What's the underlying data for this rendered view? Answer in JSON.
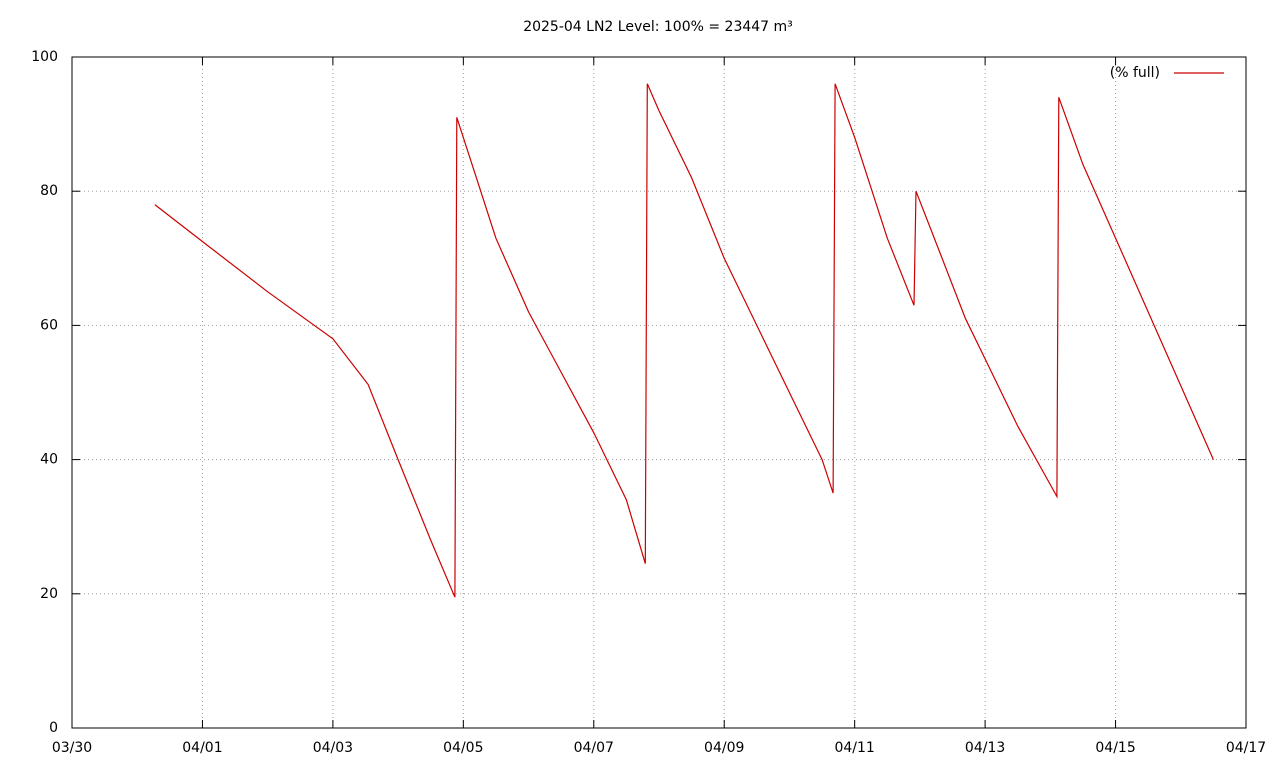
{
  "chart_data": {
    "type": "line",
    "title": "2025-04 LN2 Level: 100% = 23447 m³",
    "x": [
      1.27,
      2.0,
      3.0,
      4.0,
      4.54,
      5.0,
      5.5,
      5.87,
      5.9,
      6.2,
      6.5,
      7.0,
      7.5,
      8.0,
      8.5,
      8.79,
      8.82,
      9.0,
      9.5,
      10.0,
      10.5,
      11.0,
      11.5,
      11.67,
      11.7,
      12.0,
      12.5,
      12.91,
      12.94,
      13.3,
      13.7,
      14.0,
      14.5,
      15.1,
      15.13,
      15.5,
      16.0,
      16.5,
      17.0,
      17.5
    ],
    "series": [
      {
        "name": "(% full)",
        "color": "#cc0000",
        "values": [
          78,
          72.5,
          65,
          58,
          51.2,
          40,
          28,
          19.5,
          91,
          82,
          73,
          62,
          53,
          44,
          34,
          24.5,
          96,
          92,
          82,
          70,
          60,
          50,
          40,
          35,
          96,
          88,
          73,
          63,
          80,
          71,
          61,
          55,
          45,
          34.5,
          94,
          84,
          73,
          62,
          51,
          40
        ]
      }
    ],
    "xlim": [
      0,
      18
    ],
    "xticks": [
      {
        "value": 0,
        "label": "03/30"
      },
      {
        "value": 2,
        "label": "04/01"
      },
      {
        "value": 4,
        "label": "04/03"
      },
      {
        "value": 6,
        "label": "04/05"
      },
      {
        "value": 8,
        "label": "04/07"
      },
      {
        "value": 10,
        "label": "04/09"
      },
      {
        "value": 12,
        "label": "04/11"
      },
      {
        "value": 14,
        "label": "04/13"
      },
      {
        "value": 16,
        "label": "04/15"
      },
      {
        "value": 18,
        "label": "04/17"
      }
    ],
    "ylim": [
      0,
      100
    ],
    "yticks": [
      0,
      20,
      40,
      60,
      80,
      100
    ],
    "grid": true,
    "legend": "top-right"
  }
}
